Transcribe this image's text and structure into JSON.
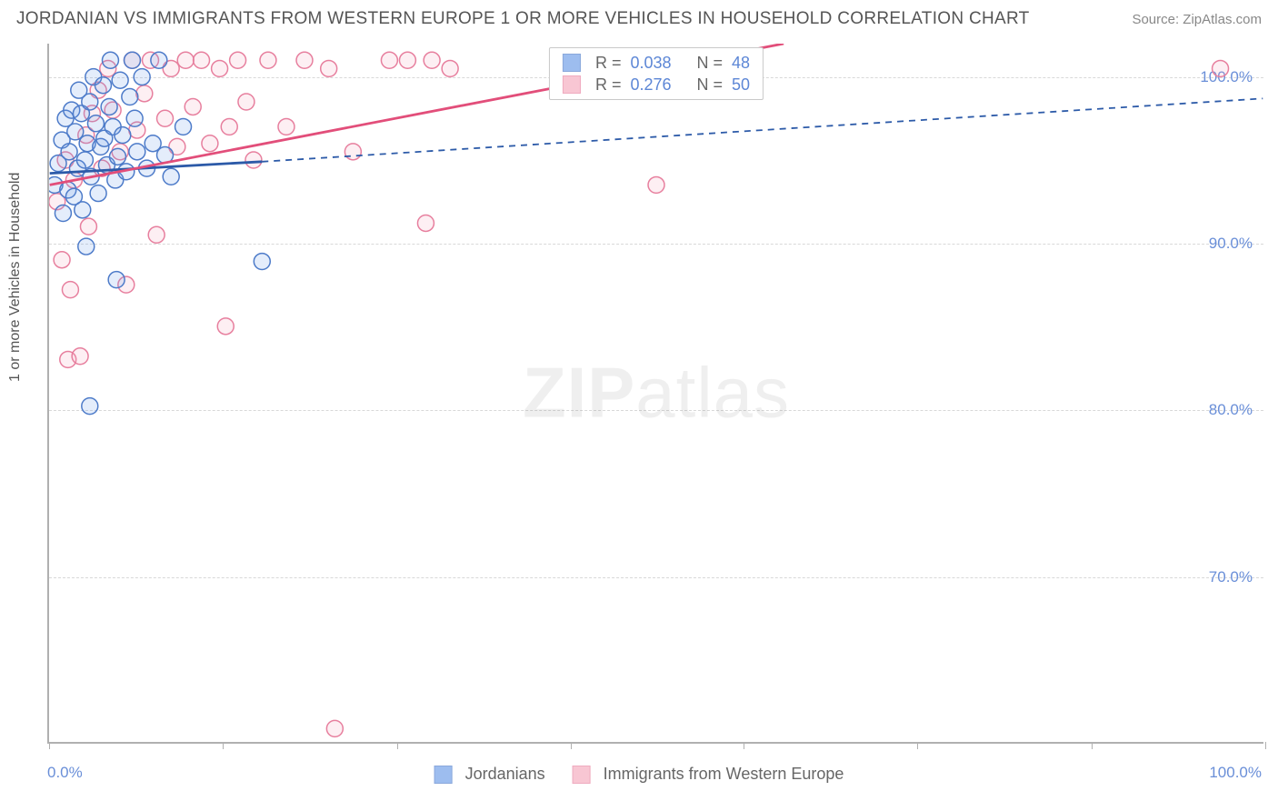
{
  "header": {
    "title": "JORDANIAN VS IMMIGRANTS FROM WESTERN EUROPE 1 OR MORE VEHICLES IN HOUSEHOLD CORRELATION CHART",
    "source": "Source: ZipAtlas.com"
  },
  "axes": {
    "ylabel": "1 or more Vehicles in Household",
    "x_start": "0.0%",
    "x_end": "100.0%",
    "ytick_labels": [
      "70.0%",
      "80.0%",
      "90.0%",
      "100.0%"
    ],
    "ytick_values": [
      70,
      80,
      90,
      100
    ],
    "xtick_values": [
      0,
      14.3,
      28.6,
      42.9,
      57.1,
      71.4,
      85.7,
      100
    ],
    "xlim": [
      0,
      100
    ],
    "ylim": [
      60,
      102
    ]
  },
  "styling": {
    "grid_color": "#d8d8d8",
    "axis_color": "#b0b0b0",
    "background": "#ffffff",
    "marker_radius": 9,
    "marker_fill_opacity": 0.18,
    "marker_stroke_width": 1.5,
    "label_color": "#6a8fd8"
  },
  "watermark": {
    "zip": "ZIP",
    "atlas": "atlas"
  },
  "series": {
    "blue": {
      "label": "Jordanians",
      "color": "#6a9be8",
      "stroke": "#4d7bc9",
      "line_color": "#2c5aa8",
      "R": "0.038",
      "N": "48",
      "trend": {
        "x1": 0,
        "y1": 94.2,
        "x2": 17.5,
        "y2": 94.9,
        "dash_x2": 100,
        "dash_y2": 98.7
      },
      "points": [
        [
          0.4,
          93.5
        ],
        [
          0.7,
          94.8
        ],
        [
          1.0,
          96.2
        ],
        [
          1.1,
          91.8
        ],
        [
          1.3,
          97.5
        ],
        [
          1.5,
          93.2
        ],
        [
          1.6,
          95.5
        ],
        [
          1.8,
          98.0
        ],
        [
          2.0,
          92.8
        ],
        [
          2.1,
          96.7
        ],
        [
          2.3,
          94.5
        ],
        [
          2.4,
          99.2
        ],
        [
          2.6,
          97.8
        ],
        [
          2.7,
          92.0
        ],
        [
          2.9,
          95.0
        ],
        [
          3.0,
          89.8
        ],
        [
          3.1,
          96.0
        ],
        [
          3.3,
          98.5
        ],
        [
          3.4,
          94.0
        ],
        [
          3.6,
          100.0
        ],
        [
          3.8,
          97.2
        ],
        [
          3.3,
          80.2
        ],
        [
          4.0,
          93.0
        ],
        [
          4.2,
          95.8
        ],
        [
          4.4,
          99.5
        ],
        [
          4.5,
          96.3
        ],
        [
          4.7,
          94.7
        ],
        [
          4.9,
          98.2
        ],
        [
          5.0,
          101.0
        ],
        [
          5.2,
          97.0
        ],
        [
          5.4,
          93.8
        ],
        [
          5.6,
          95.2
        ],
        [
          5.8,
          99.8
        ],
        [
          6.0,
          96.5
        ],
        [
          6.3,
          94.3
        ],
        [
          6.6,
          98.8
        ],
        [
          6.8,
          101.0
        ],
        [
          7.0,
          97.5
        ],
        [
          7.2,
          95.5
        ],
        [
          7.6,
          100.0
        ],
        [
          8.0,
          94.5
        ],
        [
          8.5,
          96.0
        ],
        [
          9.0,
          101.0
        ],
        [
          9.5,
          95.3
        ],
        [
          10.0,
          94.0
        ],
        [
          11.0,
          97.0
        ],
        [
          5.5,
          87.8
        ],
        [
          17.5,
          88.9
        ]
      ]
    },
    "pink": {
      "label": "Immigrants from Western Europe",
      "color": "#f5a8bd",
      "stroke": "#e77f9e",
      "line_color": "#e24e7a",
      "R": "0.276",
      "N": "50",
      "trend": {
        "x1": 0,
        "y1": 93.5,
        "x2": 60.5,
        "y2": 102.0
      },
      "points": [
        [
          0.6,
          92.5
        ],
        [
          1.0,
          89.0
        ],
        [
          1.3,
          95.0
        ],
        [
          1.5,
          83.0
        ],
        [
          1.7,
          87.2
        ],
        [
          2.0,
          93.8
        ],
        [
          2.5,
          83.2
        ],
        [
          3.0,
          96.5
        ],
        [
          3.2,
          91.0
        ],
        [
          3.5,
          97.8
        ],
        [
          4.0,
          99.2
        ],
        [
          4.3,
          94.5
        ],
        [
          4.8,
          100.5
        ],
        [
          5.2,
          98.0
        ],
        [
          5.8,
          95.5
        ],
        [
          6.3,
          87.5
        ],
        [
          6.8,
          101.0
        ],
        [
          7.2,
          96.8
        ],
        [
          7.8,
          99.0
        ],
        [
          8.3,
          101.0
        ],
        [
          8.8,
          90.5
        ],
        [
          9.5,
          97.5
        ],
        [
          10.0,
          100.5
        ],
        [
          10.5,
          95.8
        ],
        [
          11.2,
          101.0
        ],
        [
          11.8,
          98.2
        ],
        [
          12.5,
          101.0
        ],
        [
          13.2,
          96.0
        ],
        [
          14.0,
          100.5
        ],
        [
          14.5,
          85.0
        ],
        [
          14.8,
          97.0
        ],
        [
          15.5,
          101.0
        ],
        [
          16.2,
          98.5
        ],
        [
          16.8,
          95.0
        ],
        [
          18.0,
          101.0
        ],
        [
          19.5,
          97.0
        ],
        [
          21.0,
          101.0
        ],
        [
          23.0,
          100.5
        ],
        [
          25.0,
          95.5
        ],
        [
          28.0,
          101.0
        ],
        [
          29.5,
          101.0
        ],
        [
          31.0,
          91.2
        ],
        [
          31.5,
          101.0
        ],
        [
          33.0,
          100.5
        ],
        [
          46.5,
          101.0
        ],
        [
          50.0,
          93.5
        ],
        [
          55.0,
          101.0
        ],
        [
          57.0,
          100.5
        ],
        [
          96.5,
          100.5
        ],
        [
          23.5,
          60.8
        ]
      ]
    }
  },
  "stats_labels": {
    "R": "R =",
    "N": "N ="
  }
}
